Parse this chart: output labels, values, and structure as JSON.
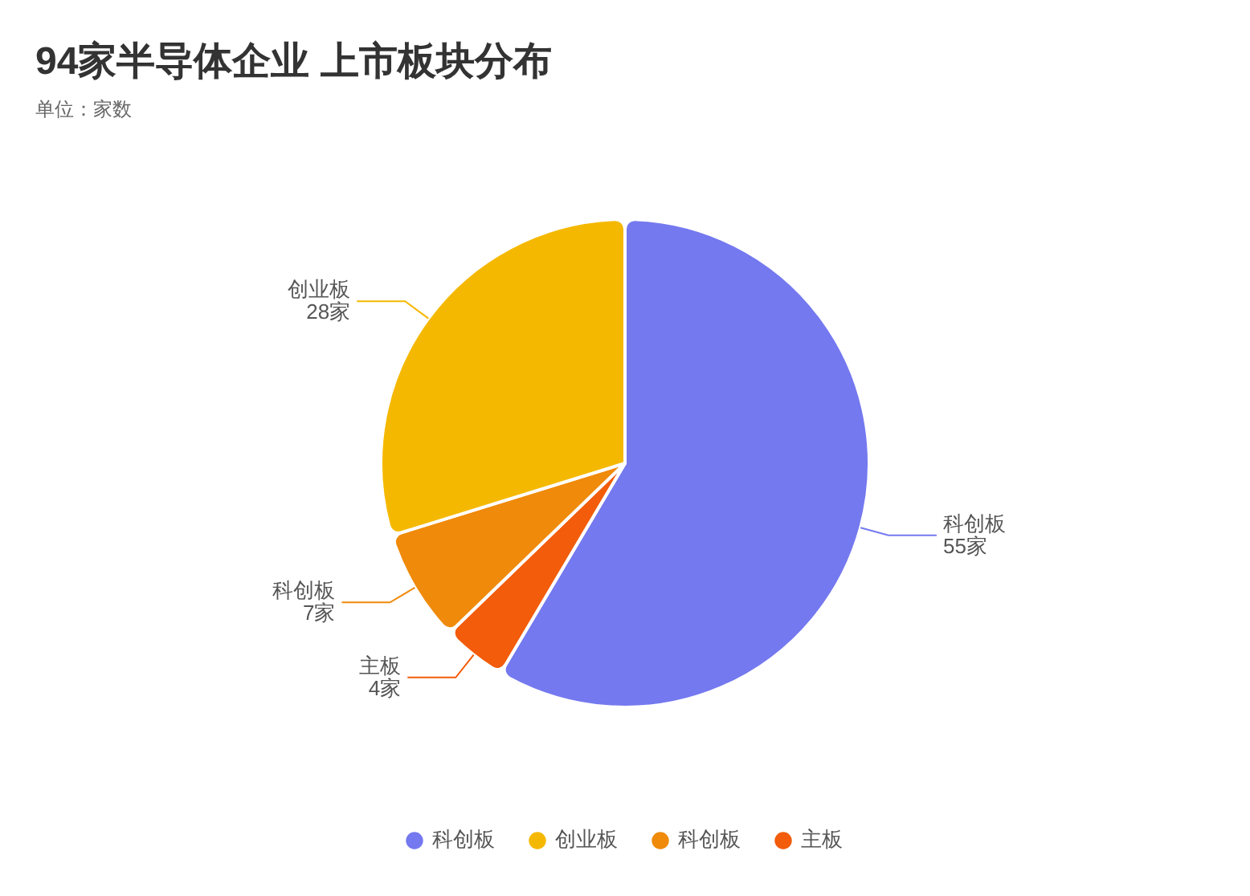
{
  "chart_data": {
    "type": "pie",
    "title": "94家半导体企业 上市板块分布",
    "subtitle": "单位：家数",
    "categories": [
      "科创板",
      "创业板",
      "科创板",
      "主板"
    ],
    "values": [
      55,
      28,
      7,
      4
    ],
    "value_labels": [
      "55家",
      "28家",
      "7家",
      "4家"
    ],
    "colors": [
      "#7479ef",
      "#f5b800",
      "#f08a0a",
      "#f25c0a"
    ],
    "legend": "bottom"
  }
}
